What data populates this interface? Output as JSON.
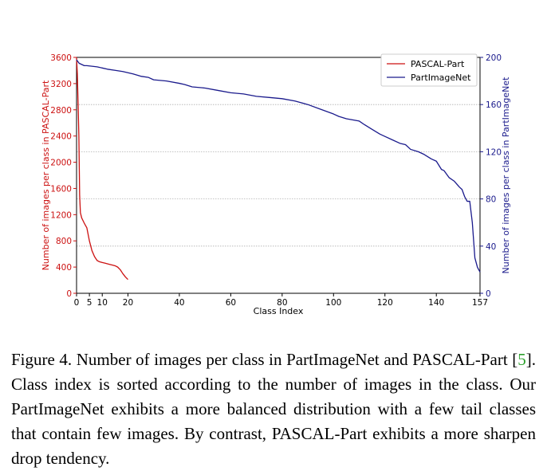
{
  "chart_data": {
    "type": "line",
    "xlabel": "Class Index",
    "ylabel_left": "Number of images per class in PASCAL-Part",
    "ylabel_right": "Number of images per class in PartImageNet",
    "x_ticks": [
      "0",
      "5",
      "10",
      "20",
      "40",
      "60",
      "80",
      "100",
      "120",
      "140",
      "157"
    ],
    "xlim": [
      0,
      157
    ],
    "y_left_ticks": [
      "0",
      "400",
      "800",
      "1200",
      "1600",
      "2000",
      "2400",
      "2800",
      "3200",
      "3600"
    ],
    "y_left_lim": [
      0,
      3600
    ],
    "y_right_ticks": [
      "0",
      "40",
      "80",
      "120",
      "160",
      "200"
    ],
    "y_right_lim": [
      0,
      200
    ],
    "grid": "horizontal dotted at right-axis ticks",
    "legend_position": "top-right",
    "colors": {
      "pascal": "#cc1111",
      "partimagenet": "#1a1a8c"
    },
    "series": [
      {
        "name": "PASCAL-Part",
        "axis": "left",
        "x": [
          0,
          0.3,
          0.6,
          0.9,
          1.2,
          1.5,
          2,
          3,
          4,
          5,
          6,
          7,
          8,
          9,
          10,
          11,
          12,
          13,
          14,
          15,
          16,
          17,
          18,
          19,
          20
        ],
        "y": [
          3600,
          3350,
          2900,
          2400,
          1500,
          1230,
          1150,
          1070,
          1000,
          800,
          650,
          560,
          500,
          480,
          470,
          460,
          450,
          440,
          430,
          420,
          400,
          360,
          300,
          250,
          210
        ]
      },
      {
        "name": "PartImageNet",
        "axis": "right",
        "x": [
          0,
          1,
          2,
          3,
          4,
          8,
          10,
          12,
          15,
          18,
          20,
          22,
          25,
          28,
          30,
          35,
          40,
          42,
          45,
          50,
          55,
          60,
          65,
          70,
          75,
          80,
          85,
          90,
          95,
          100,
          102,
          105,
          110,
          112,
          115,
          118,
          120,
          123,
          126,
          128,
          130,
          133,
          135,
          138,
          140,
          142,
          143,
          145,
          147,
          149,
          150,
          151,
          152,
          153,
          154,
          155,
          156,
          157
        ],
        "y": [
          198,
          195,
          194,
          193,
          193,
          192,
          191,
          190,
          189,
          188,
          187,
          186,
          184,
          183,
          181,
          180,
          178,
          177,
          175,
          174,
          172,
          170,
          169,
          167,
          166,
          165,
          163,
          160,
          156,
          152,
          150,
          148,
          146,
          143,
          139,
          135,
          133,
          130,
          127,
          126,
          122,
          120,
          118,
          114,
          112,
          105,
          104,
          98,
          95,
          90,
          88,
          82,
          78,
          78,
          60,
          30,
          22,
          18
        ]
      }
    ]
  },
  "caption": {
    "prefix": "Figure 4.  Number of images per class in PartImageNet and PASCAL-Part [",
    "ref": "5",
    "suffix": "].  Class index is sorted according to the number of images in the class.  Our PartImageNet exhibits a more balanced distribution with a few tail classes that contain few images. By contrast, PASCAL-Part exhibits a more sharpen drop tendency."
  }
}
